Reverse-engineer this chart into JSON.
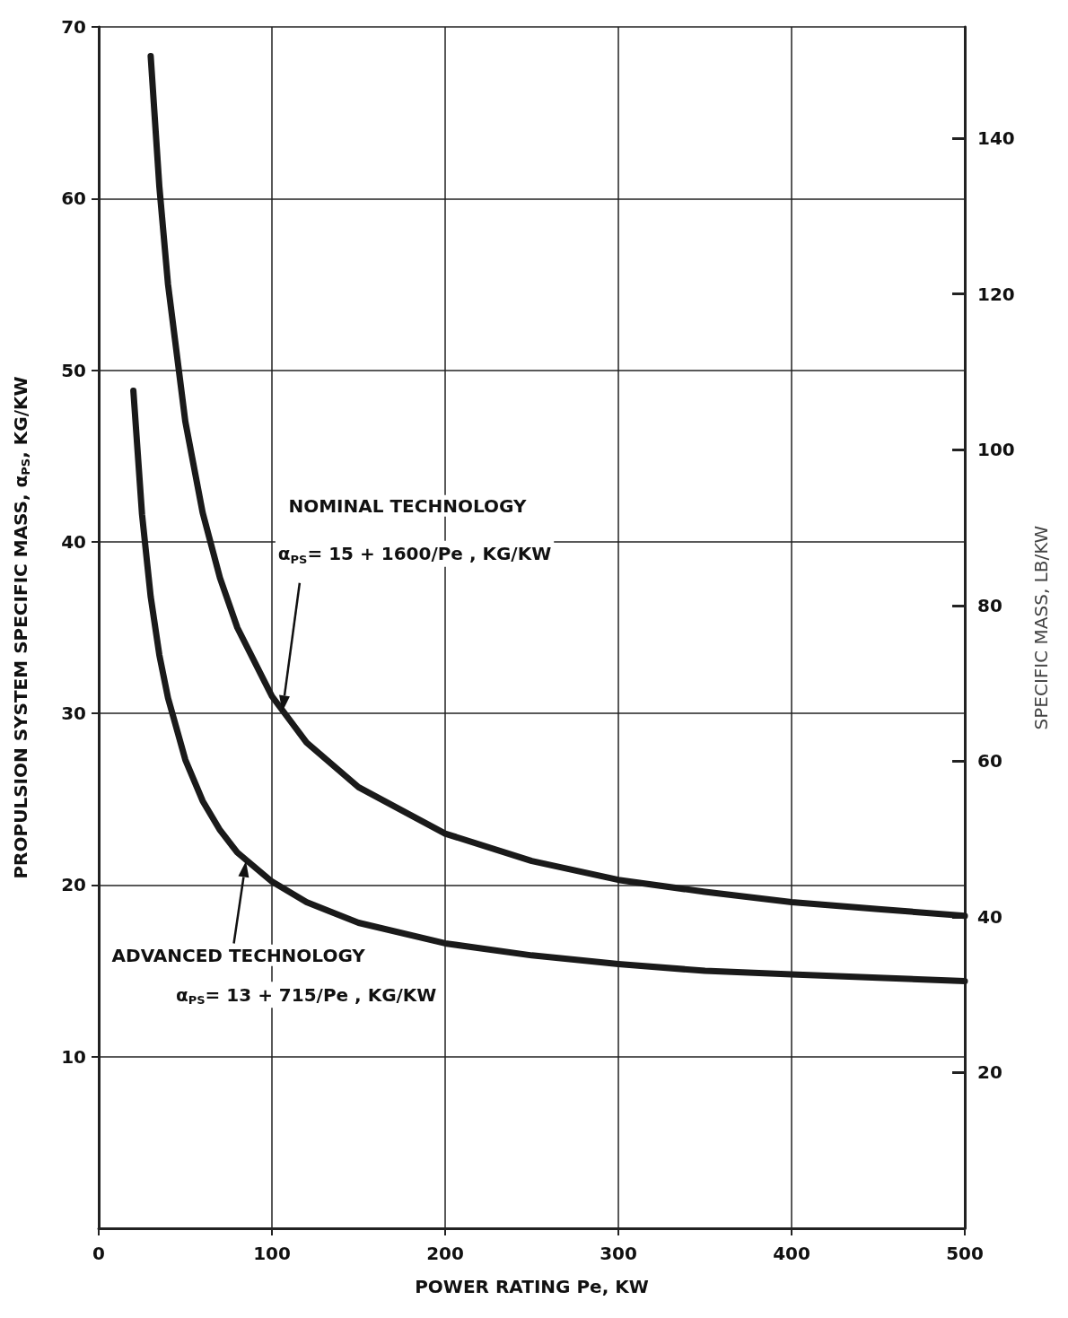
{
  "chart_data": {
    "type": "line",
    "xlabel": "POWER RATING Pe, KW",
    "ylabel": "PROPULSION SYSTEM SPECIFIC MASS, α$_{PS}$, KG/KW",
    "y2label": "SPECIFIC MASS, LB/KW",
    "x": [
      30,
      35,
      40,
      50,
      60,
      70,
      80,
      100,
      120,
      150,
      200,
      250,
      300,
      350,
      400,
      450,
      500
    ],
    "series": [
      {
        "color": "#1a1a1a",
        "values": [
          68.3,
          60.7,
          55,
          47,
          41.7,
          37.9,
          35,
          31,
          28.3,
          25.7,
          23,
          21.4,
          20.3,
          19.6,
          19,
          18.6,
          18.2
        ]
      },
      {
        "color": "#1a1a1a",
        "x": [
          20,
          25,
          30,
          35,
          40,
          50,
          60,
          70,
          80,
          100,
          120,
          150,
          200,
          250,
          300,
          350,
          400,
          450,
          500
        ],
        "values": [
          48.8,
          41.6,
          36.8,
          33.4,
          30.9,
          27.3,
          24.9,
          23.2,
          21.9,
          20.2,
          19,
          17.8,
          16.6,
          15.9,
          15.4,
          15,
          14.8,
          14.6,
          14.4
        ]
      }
    ],
    "annotations": [
      "NOMINAL TECHNOLOGY",
      "α$_{PS}$= 15 + 1600/Pe , KG/KW",
      "ADVANCED TECHNOLOGY",
      "α$_{PS}$= 13 + 715/Pe , KG/KW"
    ],
    "xlim": [
      0,
      500
    ],
    "xticks": [
      0,
      100,
      200,
      300,
      400,
      500
    ],
    "ylim": [
      0,
      70
    ],
    "yticks": [
      10,
      20,
      30,
      40,
      50,
      60,
      70
    ],
    "y2lim": [
      0,
      154.3
    ],
    "y2ticks": [
      20,
      40,
      60,
      80,
      100,
      120,
      140
    ],
    "grid": true,
    "marker": "none",
    "line_style": "solid"
  }
}
